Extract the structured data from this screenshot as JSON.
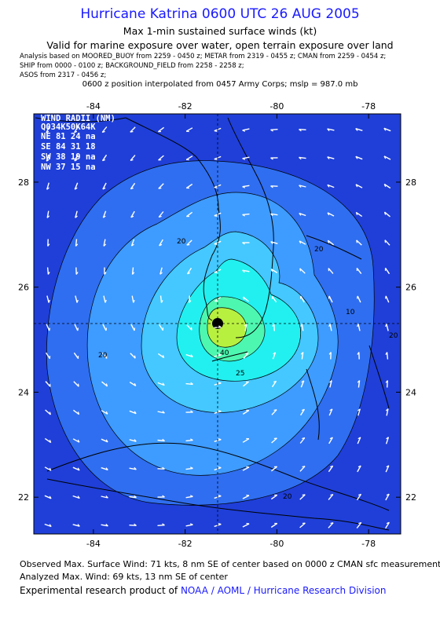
{
  "title": "Hurricane Katrina 0600 UTC 26 AUG 2005",
  "subtitle1": "Max 1-min sustained surface winds (kt)",
  "subtitle2": "Valid for marine exposure over water, open terrain exposure over land",
  "analysis_lines": [
    "Analysis based on  MOORED_BUOY from 2259 - 0450 z;  METAR from 2319 - 0455 z;  CMAN from 2259 - 0454 z;",
    "SHIP from 0000 - 0100 z;  BACKGROUND_FIELD from 2258 - 2258 z;",
    "ASOS from 2317 - 0456 z;"
  ],
  "position_note": "0600 z position interpolated from 0457 Army Corps; mslp = 987.0 mb",
  "map": {
    "lon_ticks": [
      "-84",
      "-82",
      "-80",
      "-78"
    ],
    "lat_ticks": [
      "28",
      "26",
      "24",
      "22"
    ],
    "lon_range": [
      -85.3,
      -77.3
    ],
    "lat_range": [
      21.3,
      29.3
    ],
    "center": {
      "lon": -81.2,
      "lat": 25.5
    },
    "contour_labels": [
      "20",
      "20",
      "20",
      "20",
      "25",
      "40",
      "10",
      "20"
    ],
    "colors": {
      "ocean_dark": "#1f3fd8",
      "ring_20": "#2f6ef0",
      "ring_25": "#3e9bff",
      "ring_30": "#44c8ff",
      "ring_40": "#22f0f0",
      "ring_50": "#4df7b0",
      "ring_60": "#b8f040",
      "eye": "#000000"
    }
  },
  "wind_radii": {
    "title": "WIND RADII (NM)",
    "header": "Q034K50K64K",
    "rows": [
      "NE 81 24 na",
      "SE 84 31 18",
      "SW 38 19 na",
      "NW 37 15 na"
    ]
  },
  "footer": {
    "observed": "Observed Max. Surface Wind: 71 kts, 8 nm SE of center based on 0000 z CMAN sfc measurement",
    "analyzed": "Analyzed Max. Wind: 69 kts, 13 nm SE of center",
    "product_prefix": "Experimental research product of",
    "product_link": "NOAA / AOML / Hurricane Research Division"
  }
}
